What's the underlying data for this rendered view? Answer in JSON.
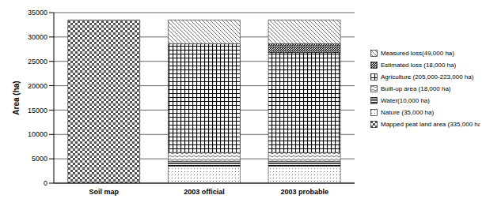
{
  "chart_data": {
    "type": "bar",
    "stacked": true,
    "categories": [
      "Soil map",
      "2003 official",
      "2003 probable"
    ],
    "ylabel": "Area (ha)",
    "ylim": [
      0,
      35000
    ],
    "yticks": [
      0,
      5000,
      10000,
      15000,
      20000,
      25000,
      30000,
      35000
    ],
    "grid": true,
    "legend": "right",
    "series": [
      {
        "name": "Mapped peat land area (335,000 ha)",
        "color": "#555555",
        "values": [
          33500,
          null,
          null
        ]
      },
      {
        "name": "Nature (35,000 ha)",
        "color": "#777777",
        "values": [
          null,
          3500,
          3500
        ]
      },
      {
        "name": "Water(10,000 ha)",
        "color": "#000000",
        "values": [
          null,
          1000,
          1000
        ]
      },
      {
        "name": "Built-up area (18,000 ha)",
        "color": "#666666",
        "values": [
          null,
          1800,
          1800
        ]
      },
      {
        "name": "Agriculture (205,000-223,000 ha)",
        "color": "#000000",
        "values": [
          null,
          22300,
          20500
        ]
      },
      {
        "name": "Estimated loss (18,000 ha)",
        "color": "#000000",
        "values": [
          null,
          null,
          1800
        ]
      },
      {
        "name": "Measured loss(49,000 ha)",
        "color": "#555555",
        "values": [
          null,
          4900,
          4900
        ]
      }
    ]
  }
}
